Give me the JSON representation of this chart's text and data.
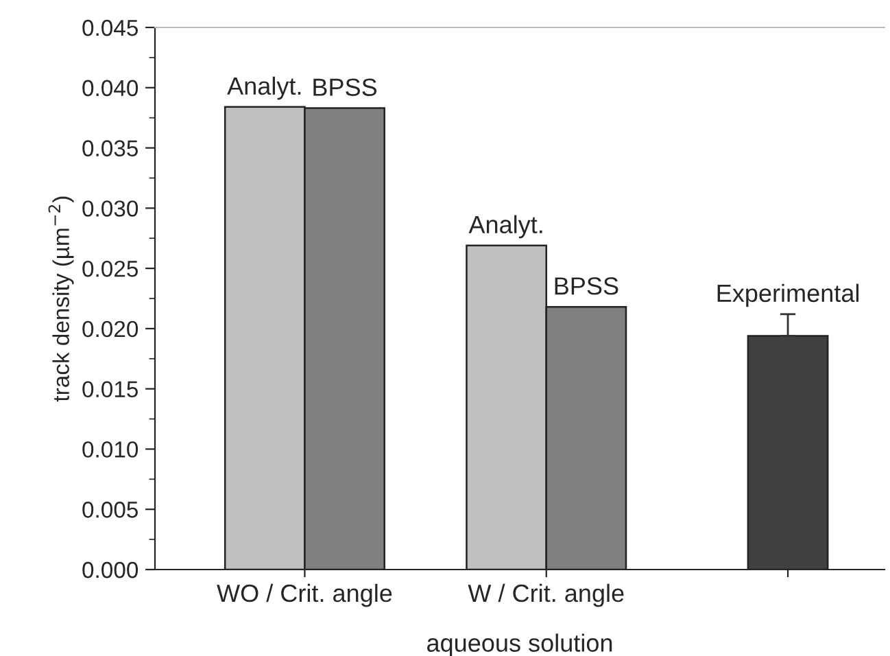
{
  "chart_data": {
    "type": "bar",
    "xlabel": "aqueous solution",
    "ylabel": "track density (µm$^{−2}$)",
    "categories": [
      "WO / Crit. angle",
      "W / Crit. angle",
      null
    ],
    "series": [
      {
        "name": "Analyt.",
        "color": "#c0c0c0",
        "values": [
          0.0384,
          0.0269,
          null
        ]
      },
      {
        "name": "BPSS",
        "color": "#808080",
        "values": [
          0.0383,
          0.0218,
          null
        ]
      },
      {
        "name": "Experimental",
        "color": "#404040",
        "values": [
          null,
          null,
          0.0194
        ],
        "errors": [
          null,
          null,
          [
            0.0194,
            0.0212
          ]
        ]
      }
    ],
    "ylim": [
      0,
      0.045
    ],
    "yticks": [
      {
        "value": 0,
        "label": "0.000"
      },
      {
        "value": 0.005,
        "label": "0.005"
      },
      {
        "value": 0.01,
        "label": "0.010"
      },
      {
        "value": 0.015,
        "label": "0.015"
      },
      {
        "value": 0.02,
        "label": "0.020"
      },
      {
        "value": 0.025,
        "label": "0.025"
      },
      {
        "value": 0.03,
        "label": "0.030"
      },
      {
        "value": 0.035,
        "label": "0.035"
      },
      {
        "value": 0.04,
        "label": "0.040"
      },
      {
        "value": 0.045,
        "label": "0.045"
      }
    ]
  }
}
